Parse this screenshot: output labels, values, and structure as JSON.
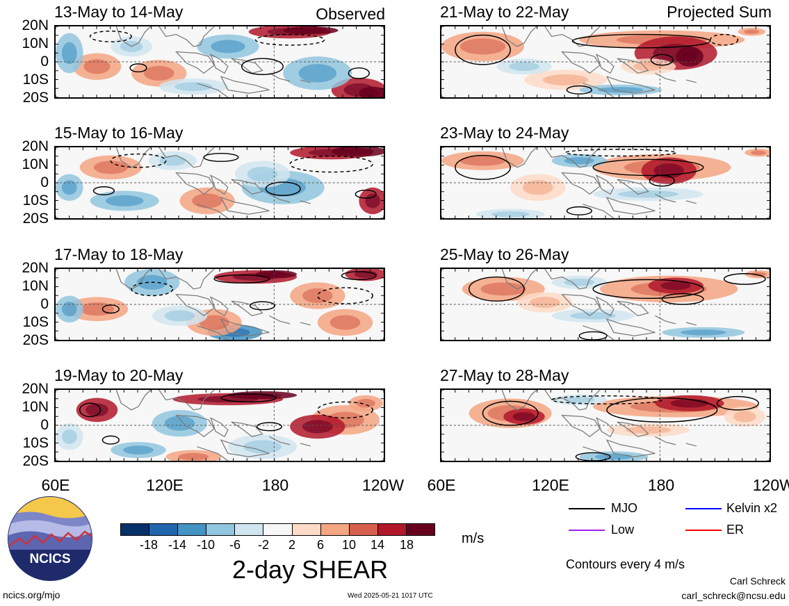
{
  "panels": [
    {
      "title": "13-May to 14-May",
      "tag": "Observed",
      "field": "obs1"
    },
    {
      "title": "15-May to 16-May",
      "tag": "",
      "field": "obs2"
    },
    {
      "title": "17-May to 18-May",
      "tag": "",
      "field": "obs3"
    },
    {
      "title": "19-May to 20-May",
      "tag": "",
      "field": "obs4"
    },
    {
      "title": "21-May to 22-May",
      "tag": "Projected Sum",
      "field": "proj1"
    },
    {
      "title": "23-May to 24-May",
      "tag": "",
      "field": "proj2"
    },
    {
      "title": "25-May to 26-May",
      "tag": "",
      "field": "proj3"
    },
    {
      "title": "27-May to 28-May",
      "tag": "",
      "field": "proj4"
    }
  ],
  "lat_labels": [
    "20N",
    "10N",
    "0",
    "10S",
    "20S"
  ],
  "lon_labels": [
    "60E",
    "120E",
    "180",
    "120W"
  ],
  "colorbar": {
    "ticks": [
      "-18",
      "-14",
      "-10",
      "-6",
      "-2",
      "2",
      "6",
      "10",
      "14",
      "18"
    ],
    "colors": [
      "#08306b",
      "#2166ac",
      "#4393c3",
      "#92c5de",
      "#d1e5f0",
      "#f7f7f7",
      "#fddbc7",
      "#f4a582",
      "#d6604d",
      "#b2182b",
      "#67001f"
    ],
    "units": "m/s",
    "title": "2-day SHEAR"
  },
  "legend": {
    "items": [
      {
        "label": "MJO",
        "color": "#000000"
      },
      {
        "label": "Kelvin x2",
        "color": "#0000ff"
      },
      {
        "label": "Low",
        "color": "#a020f0"
      },
      {
        "label": "ER",
        "color": "#ff0000"
      }
    ],
    "contours_note": "Contours every 4 m/s"
  },
  "logo": {
    "text": "NCICS"
  },
  "footer": {
    "url": "ncics.org/mjo",
    "timestamp": "Wed 2025-05-21 1017 UTC",
    "author": "Carl Schreck",
    "email": "carl_schreck@ncsu.edu"
  }
}
